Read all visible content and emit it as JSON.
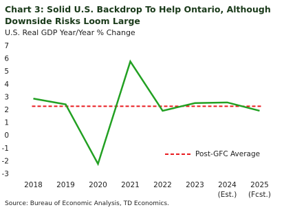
{
  "chart_data": {
    "type": "line",
    "title": "Chart 3: Solid U.S. Backdrop To Help Ontario, Although Downside Risks Loom Large",
    "subtitle": "U.S. Real GDP Year/Year % Change",
    "source": "Source: Bureau of Economic Analysis, TD Economics.",
    "categories": [
      "2018",
      "2019",
      "2020",
      "2021",
      "2022",
      "2023",
      "2024\n(Est.)",
      "2025\n(Fcst.)"
    ],
    "series": [
      {
        "name": "U.S. Real GDP",
        "color": "#22a022",
        "values": [
          2.9,
          2.45,
          -2.2,
          5.8,
          1.95,
          2.55,
          2.6,
          1.95
        ]
      }
    ],
    "reference_lines": [
      {
        "name": "Post-GFC Average",
        "value": 2.3,
        "color": "#e8191e"
      }
    ],
    "ylim": [
      -3,
      7
    ],
    "yticks": [
      -3,
      -2,
      -1,
      0,
      1,
      2,
      3,
      4,
      5,
      6,
      7
    ],
    "grid": false
  }
}
